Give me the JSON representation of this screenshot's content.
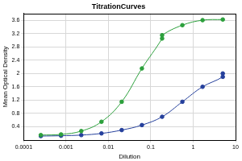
{
  "chart_data": {
    "type": "scatter",
    "title": "TitrationCurves",
    "x_label": "Dilution",
    "y_label": "Mean Optical Density",
    "series": [
      {
        "color": "#2ca03c",
        "marker": "circle",
        "line_style": "solid",
        "x": [
          0.000254,
          0.000762,
          0.00229,
          0.00686,
          0.0206,
          0.0617,
          0.185,
          0.185,
          0.556,
          1.667,
          5
        ],
        "values": [
          0.15,
          0.17,
          0.27,
          0.55,
          1.15,
          2.15,
          3.05,
          3.15,
          3.45,
          3.6,
          3.62
        ]
      },
      {
        "color": "#25409c",
        "marker": "circle",
        "line_style": "solid",
        "x": [
          0.000254,
          0.000762,
          0.00229,
          0.00686,
          0.0206,
          0.0617,
          0.185,
          0.556,
          1.667,
          5,
          5
        ],
        "values": [
          0.12,
          0.13,
          0.15,
          0.2,
          0.3,
          0.45,
          0.7,
          1.15,
          1.6,
          1.9,
          2.0
        ]
      }
    ],
    "log": "x",
    "xlim": [
      0.0001,
      10
    ],
    "xticks": [
      0.0001,
      0.001,
      0.01,
      0.1,
      1,
      10
    ],
    "ylim": [
      0,
      3.8
    ],
    "yticks": [
      0.4,
      0.8,
      1.2,
      1.6,
      2,
      2.4,
      2.8,
      3.2,
      3.6
    ],
    "grid": true
  }
}
